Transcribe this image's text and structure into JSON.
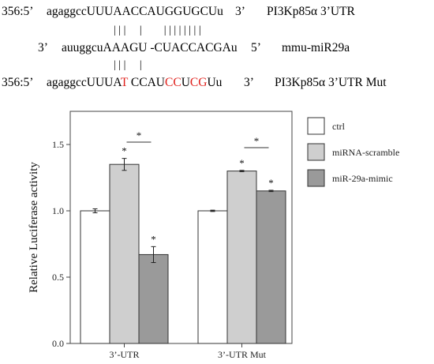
{
  "alignment": {
    "row1": {
      "pos": "356:5’",
      "seq_lower": "agaggcc",
      "seq_upper": "UUUAACCAUGGUGCU",
      "seq_end": "u",
      "end": "3’",
      "label": "PI3Kp85α 3’UTR"
    },
    "pairs1": "| | |     |        | | | | | | | |",
    "row2": {
      "start": "3’",
      "seq_lower": "auuggcu",
      "seq_a": "AAAGU",
      "seq_b": "-CUACCACGA",
      "seq_end": "u",
      "end": "5’",
      "label": "mmu-miR29a"
    },
    "pairs2": "| | |     |",
    "row3": {
      "pos": "356:5’",
      "seq_lower": "agaggcc",
      "p1": "UUUA",
      "m1": "T",
      "p2": " CCAU",
      "m2": "CC",
      "p3": "U",
      "m3": "CG",
      "p4": "U",
      "seq_end": "u",
      "end": "3’",
      "label": "PI3Kp85α 3’UTR Mut"
    }
  },
  "colors": {
    "ctrl": "#ffffff",
    "scramble": "#cfcfcf",
    "mimic": "#9a9a9a",
    "mutation": "#e0201b"
  },
  "chart_data": {
    "type": "bar",
    "categories": [
      "3’-UTR",
      "3’-UTR Mut"
    ],
    "series": [
      {
        "name": "ctrl",
        "values": [
          1.0,
          1.0
        ],
        "errors": [
          0.015,
          0.005
        ]
      },
      {
        "name": "miRNA-scramble",
        "values": [
          1.35,
          1.3
        ],
        "errors": [
          0.045,
          0.005
        ]
      },
      {
        "name": "miR-29a-mimic",
        "values": [
          0.67,
          1.15
        ],
        "errors": [
          0.06,
          0.005
        ]
      }
    ],
    "yticks": [
      "0.0",
      "0.5",
      "1.0",
      "1.5"
    ],
    "ylim": [
      0,
      1.75
    ],
    "ylabel": "Relative Luciferase activity",
    "star": "*",
    "legend_position": "right"
  }
}
